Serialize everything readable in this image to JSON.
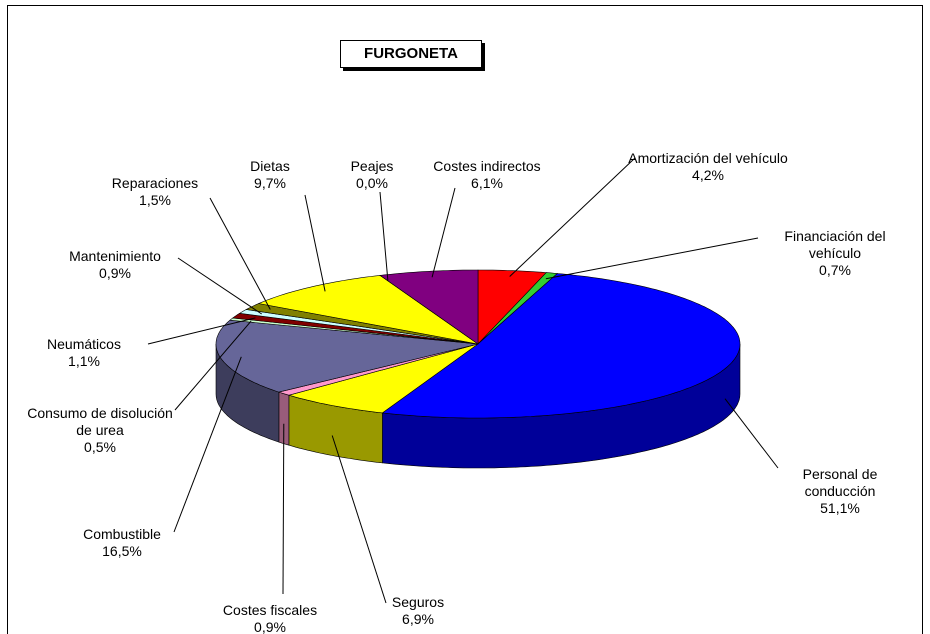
{
  "chart_data": {
    "type": "pie3d",
    "title": "FURGONETA",
    "categories": [
      "Amortización del vehículo",
      "Financiación del vehículo",
      "Personal de conducción",
      "Seguros",
      "Costes fiscales",
      "Combustible",
      "Consumo de disolución de urea",
      "Neumáticos",
      "Mantenimiento",
      "Reparaciones",
      "Dietas",
      "Peajes",
      "Costes indirectos"
    ],
    "values": [
      4.2,
      0.7,
      51.1,
      6.9,
      0.9,
      16.5,
      0.5,
      1.1,
      0.9,
      1.5,
      9.7,
      0.0,
      6.1
    ],
    "value_labels": [
      "4,2%",
      "0,7%",
      "51,1%",
      "6,9%",
      "0,9%",
      "16,5%",
      "0,5%",
      "1,1%",
      "0,9%",
      "1,5%",
      "9,7%",
      "0,0%",
      "6,1%"
    ],
    "colors": [
      "#ff0000",
      "#33cc33",
      "#0000ff",
      "#ffff00",
      "#ff99cc",
      "#666699",
      "#ccffcc",
      "#800000",
      "#ccffff",
      "#808000",
      "#ffff00",
      "#000080",
      "#800080"
    ]
  }
}
